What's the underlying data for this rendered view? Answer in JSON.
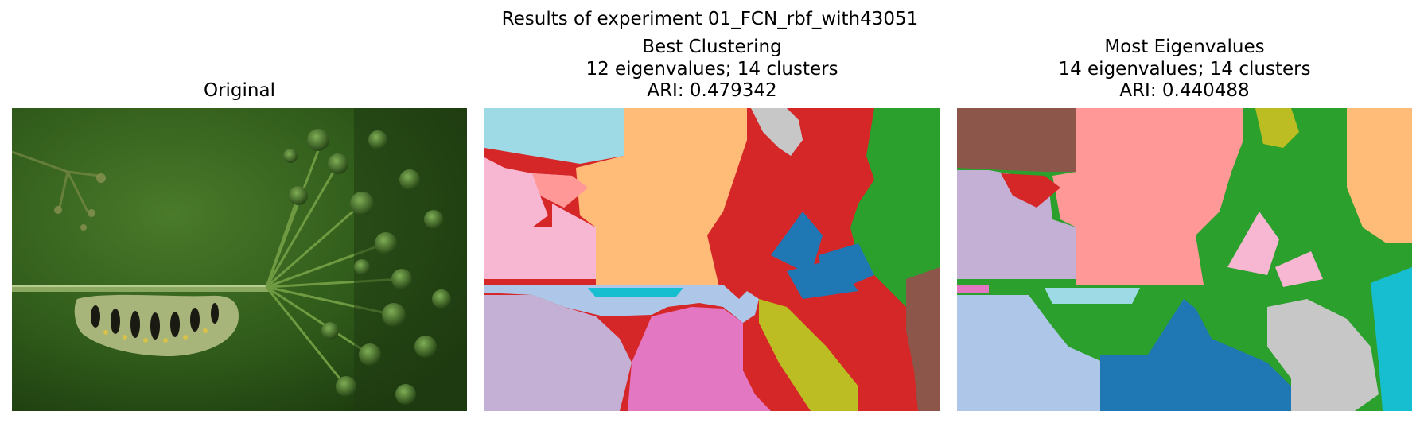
{
  "figure": {
    "suptitle": "Results of experiment 01_FCN_rbf_with43051"
  },
  "panels": [
    {
      "title_lines": [
        "Original"
      ],
      "content": "photo"
    },
    {
      "title_lines": [
        "Best Clustering",
        "12 eigenvalues; 14 clusters",
        "ARI: 0.479342"
      ],
      "content": "segmentation"
    },
    {
      "title_lines": [
        "Most Eigenvalues",
        "14 eigenvalues; 14 clusters",
        "ARI: 0.440488"
      ],
      "content": "segmentation"
    }
  ],
  "colors": {
    "tab20": [
      "#1f77b4",
      "#aec7e8",
      "#ff7f0e",
      "#ffbb78",
      "#2ca02c",
      "#98df8a",
      "#d62728",
      "#ff9896",
      "#9467bd",
      "#c5b0d5",
      "#8c564b",
      "#c49c94",
      "#e377c2",
      "#f7b6d2",
      "#7f7f7f",
      "#c7c7c7",
      "#bcbd22",
      "#dbdb8d",
      "#17becf",
      "#9edae5"
    ]
  }
}
